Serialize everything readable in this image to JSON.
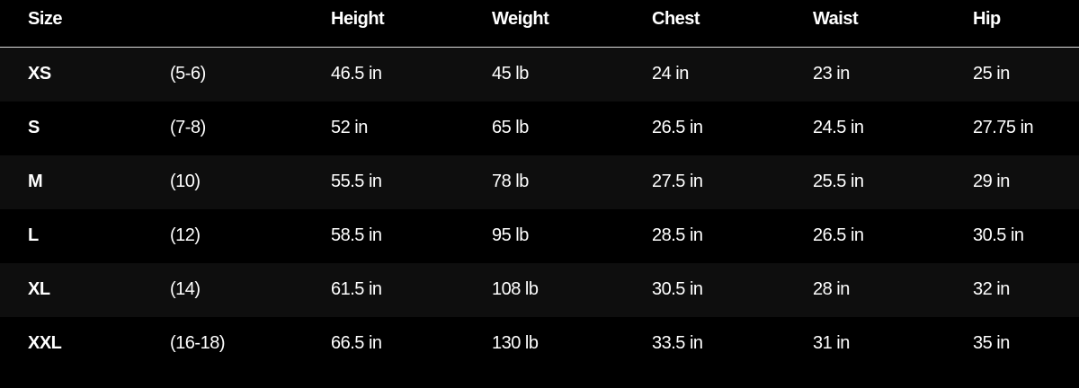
{
  "headers": [
    "Size",
    "",
    "Height",
    "Weight",
    "Chest",
    "Waist",
    "Hip"
  ],
  "rows": [
    [
      "XS",
      "(5-6)",
      "46.5 in",
      "45 lb",
      "24 in",
      "23 in",
      "25 in"
    ],
    [
      "S",
      "(7-8)",
      "52 in",
      "65 lb",
      "26.5 in",
      "24.5 in",
      "27.75 in"
    ],
    [
      "M",
      "(10)",
      "55.5 in",
      "78 lb",
      "27.5 in",
      "25.5 in",
      "29 in"
    ],
    [
      "L",
      "(12)",
      "58.5 in",
      "95 lb",
      "28.5 in",
      "26.5 in",
      "30.5 in"
    ],
    [
      "XL",
      "(14)",
      "61.5 in",
      "108 lb",
      "30.5 in",
      "28 in",
      "32 in"
    ],
    [
      "XXL",
      "(16-18)",
      "66.5 in",
      "130 lb",
      "33.5 in",
      "31 in",
      "35 in"
    ]
  ]
}
